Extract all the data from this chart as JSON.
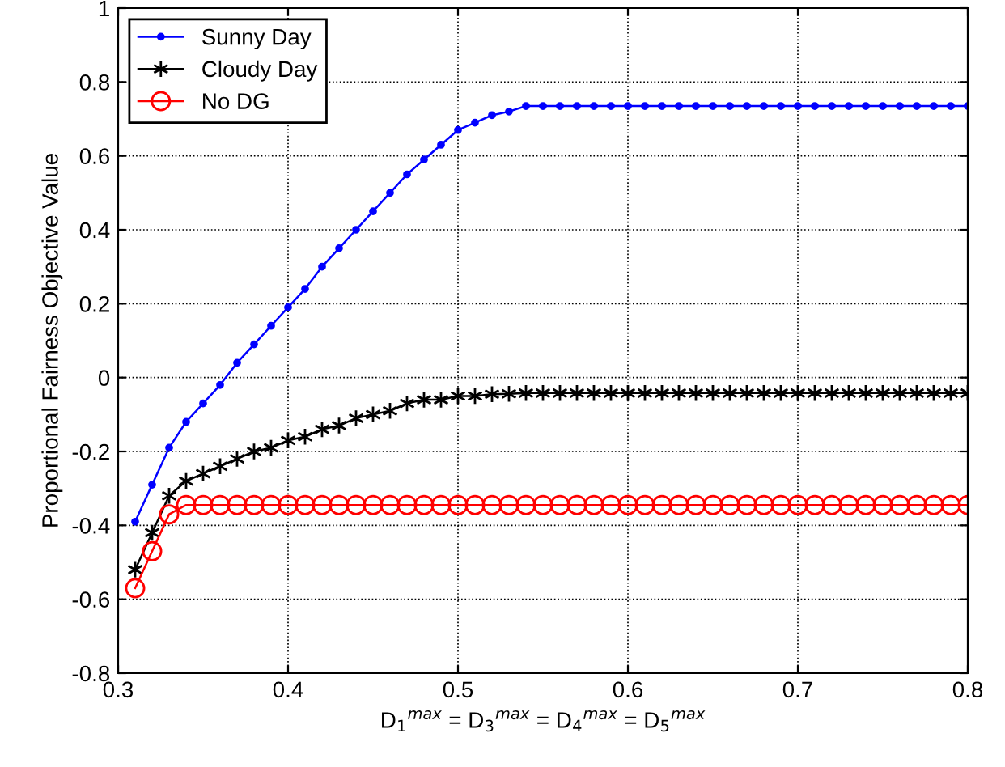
{
  "chart_data": {
    "type": "line",
    "xlabel": "D$_{1}$$^{max}$ = D$_{3}$$^{max}$ = D$_{4}$$^{max}$ = D$_{5}$$^{max}$",
    "ylabel": "Proportional Fairness Objective Value",
    "x": [
      0.31,
      0.32,
      0.33,
      0.34,
      0.35,
      0.36,
      0.37,
      0.38,
      0.39,
      0.4,
      0.41,
      0.42,
      0.43,
      0.44,
      0.45,
      0.46,
      0.47,
      0.48,
      0.49,
      0.5,
      0.51,
      0.52,
      0.53,
      0.54,
      0.55,
      0.56,
      0.57,
      0.58,
      0.59,
      0.6,
      0.61,
      0.62,
      0.63,
      0.64,
      0.65,
      0.66,
      0.67,
      0.68,
      0.69,
      0.7,
      0.71,
      0.72,
      0.73,
      0.74,
      0.75,
      0.76,
      0.77,
      0.78,
      0.79,
      0.8
    ],
    "series": [
      {
        "name": "Sunny Day",
        "color": "#0000ff",
        "marker": "circle",
        "values": [
          -0.39,
          -0.29,
          -0.19,
          -0.12,
          -0.07,
          -0.02,
          0.04,
          0.09,
          0.14,
          0.19,
          0.24,
          0.3,
          0.35,
          0.4,
          0.45,
          0.5,
          0.55,
          0.59,
          0.63,
          0.67,
          0.69,
          0.71,
          0.72,
          0.735,
          0.735,
          0.735,
          0.735,
          0.735,
          0.735,
          0.735,
          0.735,
          0.735,
          0.735,
          0.735,
          0.735,
          0.735,
          0.735,
          0.735,
          0.735,
          0.735,
          0.735,
          0.735,
          0.735,
          0.735,
          0.735,
          0.735,
          0.735,
          0.735,
          0.735,
          0.735
        ]
      },
      {
        "name": "Cloudy Day",
        "color": "#000000",
        "marker": "cross",
        "values": [
          -0.52,
          -0.42,
          -0.32,
          -0.28,
          -0.26,
          -0.24,
          -0.22,
          -0.2,
          -0.19,
          -0.17,
          -0.16,
          -0.14,
          -0.13,
          -0.11,
          -0.1,
          -0.09,
          -0.07,
          -0.06,
          -0.06,
          -0.05,
          -0.05,
          -0.045,
          -0.044,
          -0.042,
          -0.042,
          -0.042,
          -0.042,
          -0.042,
          -0.042,
          -0.042,
          -0.042,
          -0.042,
          -0.042,
          -0.042,
          -0.042,
          -0.042,
          -0.042,
          -0.042,
          -0.042,
          -0.042,
          -0.042,
          -0.042,
          -0.042,
          -0.042,
          -0.042,
          -0.042,
          -0.042,
          -0.042,
          -0.042,
          -0.042
        ]
      },
      {
        "name": "No DG",
        "color": "#ff0000",
        "marker": "circle",
        "values": [
          -0.57,
          -0.47,
          -0.37,
          -0.345,
          -0.345,
          -0.345,
          -0.345,
          -0.345,
          -0.345,
          -0.345,
          -0.345,
          -0.345,
          -0.345,
          -0.345,
          -0.345,
          -0.345,
          -0.345,
          -0.345,
          -0.345,
          -0.345,
          -0.345,
          -0.345,
          -0.345,
          -0.345,
          -0.345,
          -0.345,
          -0.345,
          -0.345,
          -0.345,
          -0.345,
          -0.345,
          -0.345,
          -0.345,
          -0.345,
          -0.345,
          -0.345,
          -0.345,
          -0.345,
          -0.345,
          -0.345,
          -0.345,
          -0.345,
          -0.345,
          -0.345,
          -0.345,
          -0.345,
          -0.345,
          -0.345,
          -0.345,
          -0.345
        ]
      }
    ],
    "xlim": [
      0.3,
      0.8
    ],
    "ylim": [
      -0.8,
      1
    ],
    "xticks": [
      0.3,
      0.4,
      0.5,
      0.6,
      0.7,
      0.8
    ],
    "yticks": [
      -0.8,
      -0.6,
      -0.4,
      -0.2,
      0,
      0.2,
      0.4,
      0.6,
      0.8,
      1
    ],
    "grid": true,
    "legend": "top left",
    "line_style": "solid"
  }
}
